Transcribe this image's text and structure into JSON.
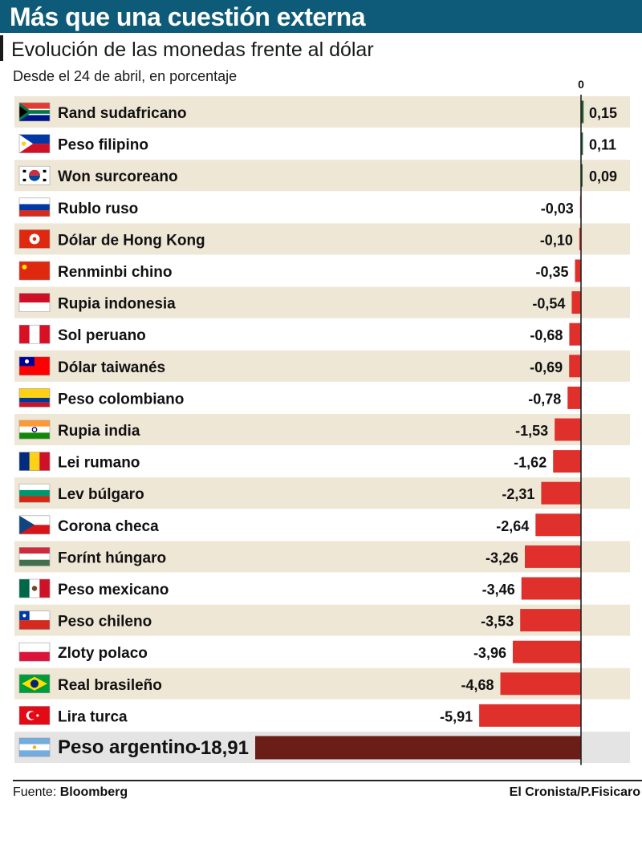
{
  "header": {
    "title": "Más que una cuestión externa",
    "subtitle": "Evolución de las monedas frente al dólar",
    "caption": "Desde el 24 de abril, en porcentaje"
  },
  "footer": {
    "source_label": "Fuente:",
    "source_name": "Bloomberg",
    "credit": "El Cronista/P.Fisicaro"
  },
  "colors": {
    "title_band": "#0d5b78",
    "row_shade": "#efe7d6",
    "positive_bar": "#1e5e2f",
    "negative_bar": "#e0302c",
    "highlight_bar": "#6b1d17",
    "highlight_row": "#e4e4e4"
  },
  "chart_data": {
    "type": "bar",
    "orientation": "horizontal",
    "title": "Evolución de las monedas frente al dólar",
    "subtitle": "Desde el 24 de abril, en porcentaje",
    "zero_label": "0",
    "xlim": [
      -18.91,
      0.15
    ],
    "categories": [
      "Rand sudafricano",
      "Peso filipino",
      "Won surcoreano",
      "Rublo ruso",
      "Dólar de Hong Kong",
      "Renminbi chino",
      "Rupia indonesia",
      "Sol peruano",
      "Dólar taiwanés",
      "Peso colombiano",
      "Rupia india",
      "Lei rumano",
      "Lev búlgaro",
      "Corona checa",
      "Forínt húngaro",
      "Peso mexicano",
      "Peso chileno",
      "Zloty polaco",
      "Real brasileño",
      "Lira turca",
      "Peso argentino"
    ],
    "values": [
      0.15,
      0.11,
      0.09,
      -0.03,
      -0.1,
      -0.35,
      -0.54,
      -0.68,
      -0.69,
      -0.78,
      -1.53,
      -1.62,
      -2.31,
      -2.64,
      -3.26,
      -3.46,
      -3.53,
      -3.96,
      -4.68,
      -5.91,
      -18.91
    ],
    "labels": [
      "0,15",
      "0,11",
      "0,09",
      "-0,03",
      "-0,10",
      "-0,35",
      "-0,54",
      "-0,68",
      "-0,69",
      "-0,78",
      "-1,53",
      "-1,62",
      "-2,31",
      "-2,64",
      "-3,26",
      "-3,46",
      "-3,53",
      "-3,96",
      "-4,68",
      "-5,91",
      "-18,91"
    ],
    "flags": [
      "za",
      "ph",
      "kr",
      "ru",
      "hk",
      "cn",
      "id",
      "pe",
      "tw",
      "co",
      "in",
      "ro",
      "bg",
      "cz",
      "hu",
      "mx",
      "cl",
      "pl",
      "br",
      "tr",
      "ar"
    ],
    "highlight": "Peso argentino"
  }
}
